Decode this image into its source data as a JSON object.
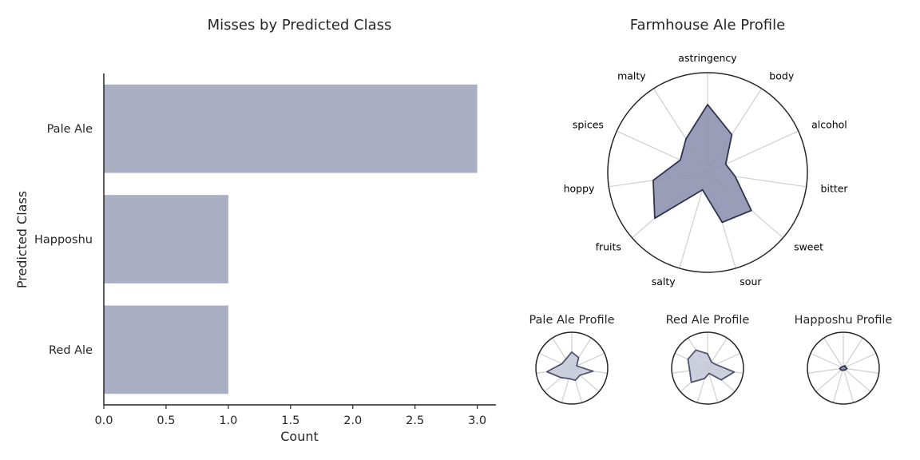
{
  "chart_data": [
    {
      "type": "bar",
      "orientation": "horizontal",
      "title": "Misses by Predicted Class",
      "xlabel": "Count",
      "ylabel": "Predicted Class",
      "categories": [
        "Pale Ale",
        "Happoshu",
        "Red Ale"
      ],
      "values": [
        3,
        1,
        1
      ],
      "xlim": [
        0,
        3.15
      ],
      "xticks": [
        "0.0",
        "0.5",
        "1.0",
        "1.5",
        "2.0",
        "2.5",
        "3.0"
      ],
      "grid": false,
      "color": "#abafc3"
    },
    {
      "type": "radar",
      "title": "Farmhouse Ale Profile",
      "axes": [
        "astringency",
        "body",
        "alcohol",
        "bitter",
        "sweet",
        "sour",
        "salty",
        "fruits",
        "hoppy",
        "spices",
        "malty"
      ],
      "values": [
        0.68,
        0.45,
        0.2,
        0.28,
        0.58,
        0.52,
        0.18,
        0.7,
        0.55,
        0.3,
        0.4
      ],
      "rmax": 1.0,
      "fill_color": "#8e92b0",
      "line_color": "#2f3350"
    },
    {
      "type": "radar",
      "title": "Pale Ale Profile",
      "values": [
        0.45,
        0.35,
        0.15,
        0.6,
        0.3,
        0.35,
        0.3,
        0.4,
        0.7,
        0.3,
        0.3
      ],
      "rmax": 1.0,
      "fill_color": "#c7cad8",
      "line_color": "#50546e"
    },
    {
      "type": "radar",
      "title": "Red Ale Profile",
      "values": [
        0.4,
        0.2,
        0.25,
        0.75,
        0.5,
        0.15,
        0.3,
        0.6,
        0.5,
        0.6,
        0.6
      ],
      "rmax": 1.0,
      "fill_color": "#c7cad8",
      "line_color": "#50546e"
    },
    {
      "type": "radar",
      "title": "Happoshu Profile",
      "values": [
        0.05,
        0.08,
        0.07,
        0.1,
        0.07,
        0.05,
        0.06,
        0.08,
        0.1,
        0.06,
        0.05
      ],
      "rmax": 1.0,
      "fill_color": "#8e92b0",
      "line_color": "#2f3350"
    }
  ]
}
